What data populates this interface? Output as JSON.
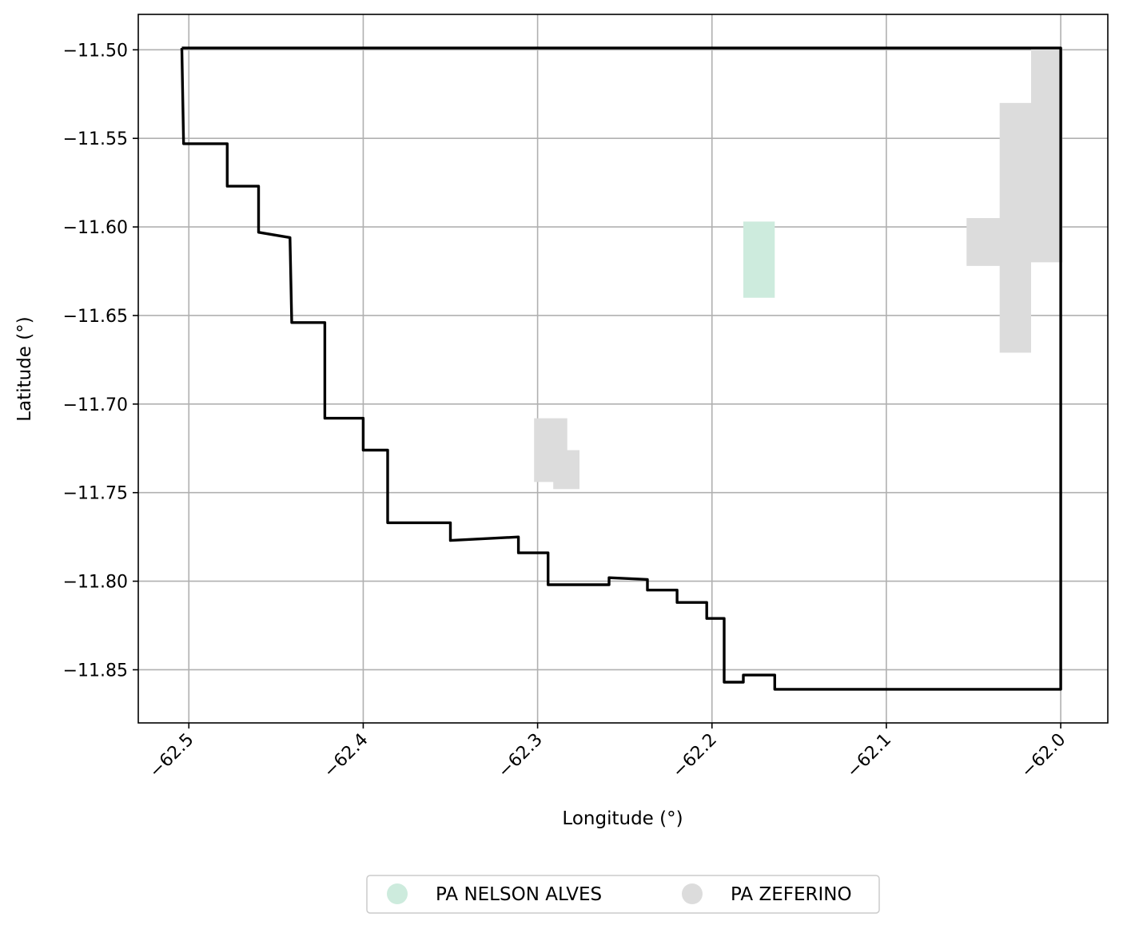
{
  "chart_data": {
    "type": "map",
    "title": "",
    "xlabel": "Longitude (°)",
    "ylabel": "Latitude (°)",
    "xlim": [
      -62.529,
      -61.973
    ],
    "ylim": [
      -11.88,
      -11.48
    ],
    "x_ticks": [
      -62.5,
      -62.4,
      -62.3,
      -62.2,
      -62.1,
      -62.0
    ],
    "x_tick_labels": [
      "−62.5",
      "−62.4",
      "−62.3",
      "−62.2",
      "−62.1",
      "−62.0"
    ],
    "y_ticks": [
      -11.5,
      -11.55,
      -11.6,
      -11.65,
      -11.7,
      -11.75,
      -11.8,
      -11.85
    ],
    "y_tick_labels": [
      "−11.50",
      "−11.55",
      "−11.60",
      "−11.65",
      "−11.70",
      "−11.75",
      "−11.80",
      "−11.85"
    ],
    "grid": true,
    "legend_position": "bottom-center, outside plot",
    "boundary": {
      "color": "#000000",
      "coordinates": [
        [
          -62.504,
          -11.499
        ],
        [
          -62.0,
          -11.499
        ],
        [
          -62.0,
          -11.861
        ],
        [
          -62.164,
          -11.861
        ],
        [
          -62.164,
          -11.853
        ],
        [
          -62.182,
          -11.853
        ],
        [
          -62.182,
          -11.857
        ],
        [
          -62.193,
          -11.857
        ],
        [
          -62.193,
          -11.821
        ],
        [
          -62.203,
          -11.821
        ],
        [
          -62.203,
          -11.812
        ],
        [
          -62.22,
          -11.812
        ],
        [
          -62.22,
          -11.805
        ],
        [
          -62.237,
          -11.805
        ],
        [
          -62.237,
          -11.799
        ],
        [
          -62.259,
          -11.798
        ],
        [
          -62.259,
          -11.802
        ],
        [
          -62.294,
          -11.802
        ],
        [
          -62.294,
          -11.784
        ],
        [
          -62.311,
          -11.784
        ],
        [
          -62.311,
          -11.775
        ],
        [
          -62.35,
          -11.777
        ],
        [
          -62.35,
          -11.767
        ],
        [
          -62.386,
          -11.767
        ],
        [
          -62.386,
          -11.726
        ],
        [
          -62.4,
          -11.726
        ],
        [
          -62.4,
          -11.708
        ],
        [
          -62.422,
          -11.708
        ],
        [
          -62.422,
          -11.654
        ],
        [
          -62.441,
          -11.654
        ],
        [
          -62.442,
          -11.606
        ],
        [
          -62.46,
          -11.603
        ],
        [
          -62.46,
          -11.577
        ],
        [
          -62.478,
          -11.577
        ],
        [
          -62.478,
          -11.553
        ],
        [
          -62.503,
          -11.553
        ],
        [
          -62.504,
          -11.499
        ]
      ]
    },
    "areas": [
      {
        "name": "PA NELSON ALVES",
        "color": "#cdebdd",
        "polygons": [
          [
            [
              -62.182,
              -11.597
            ],
            [
              -62.164,
              -11.597
            ],
            [
              -62.164,
              -11.64
            ],
            [
              -62.182,
              -11.64
            ]
          ]
        ]
      },
      {
        "name": "PA ZEFERINO",
        "color": "#dcdcdc",
        "polygons": [
          [
            [
              -62.017,
              -11.499
            ],
            [
              -61.999,
              -11.499
            ],
            [
              -61.999,
              -11.62
            ],
            [
              -62.017,
              -11.62
            ],
            [
              -62.017,
              -11.671
            ],
            [
              -62.035,
              -11.671
            ],
            [
              -62.035,
              -11.622
            ],
            [
              -62.054,
              -11.622
            ],
            [
              -62.054,
              -11.595
            ],
            [
              -62.035,
              -11.595
            ],
            [
              -62.035,
              -11.53
            ],
            [
              -62.017,
              -11.53
            ]
          ],
          [
            [
              -62.302,
              -11.708
            ],
            [
              -62.283,
              -11.708
            ],
            [
              -62.283,
              -11.726
            ],
            [
              -62.276,
              -11.726
            ],
            [
              -62.276,
              -11.748
            ],
            [
              -62.291,
              -11.748
            ],
            [
              -62.291,
              -11.744
            ],
            [
              -62.302,
              -11.744
            ]
          ]
        ]
      }
    ]
  }
}
